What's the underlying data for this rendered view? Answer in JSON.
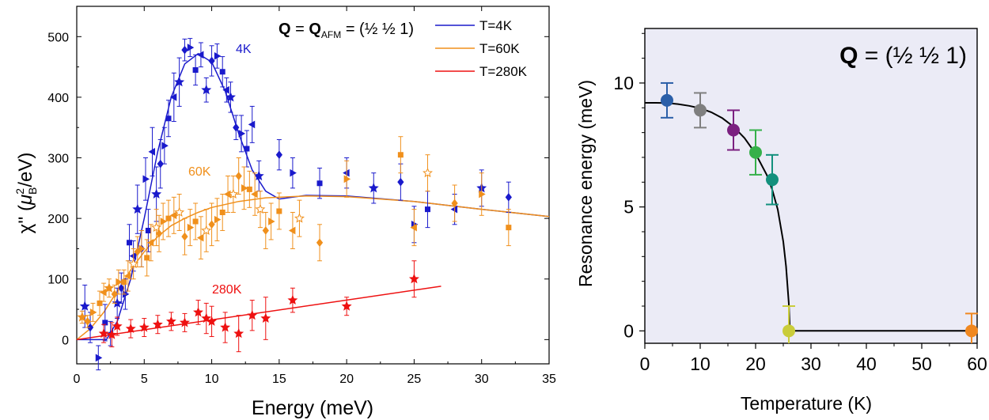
{
  "chart_data": [
    {
      "type": "scatter",
      "annotation": {
        "bold_q": "Q",
        "eq": " = ",
        "bold_q2": "Q",
        "sub": "AFM",
        "rest": " = (½ ½ 1)"
      },
      "xlabel": "Energy (meV)",
      "ylabel": {
        "chi": "χ''",
        "paren_open": " (",
        "mu": "μ",
        "sup": "2",
        "sub": "B",
        "rest": "/eV)"
      },
      "xlim": [
        0,
        35
      ],
      "ylim": [
        -40,
        550
      ],
      "xticks": [
        0,
        5,
        10,
        15,
        20,
        25,
        30,
        35
      ],
      "yticks": [
        0,
        100,
        200,
        300,
        400,
        500
      ],
      "legend_position": "top-right",
      "labels": {
        "t4": "4K",
        "t60": "60K",
        "t280": "280K"
      },
      "series": [
        {
          "name": "T=4K",
          "label_key": "t4",
          "color": "#1a1acc",
          "fit": [
            [
              0,
              0
            ],
            [
              2.2,
              0
            ],
            [
              3,
              30
            ],
            [
              4,
              100
            ],
            [
              5,
              200
            ],
            [
              6,
              310
            ],
            [
              7,
              400
            ],
            [
              8,
              455
            ],
            [
              9,
              472
            ],
            [
              10,
              458
            ],
            [
              11,
              410
            ],
            [
              12,
              340
            ],
            [
              13,
              280
            ],
            [
              14,
              245
            ],
            [
              15,
              232
            ],
            [
              17,
              238
            ],
            [
              20,
              237
            ],
            [
              25,
              228
            ],
            [
              30,
              215
            ],
            [
              35,
              203
            ]
          ],
          "points": [
            [
              0.6,
              55,
              35
            ],
            [
              1.0,
              20,
              25
            ],
            [
              1.6,
              -30,
              20
            ],
            [
              2.1,
              28,
              30
            ],
            [
              2.5,
              10,
              20
            ],
            [
              3.0,
              60,
              25
            ],
            [
              3.3,
              85,
              25
            ],
            [
              3.6,
              75,
              25
            ],
            [
              3.9,
              160,
              30
            ],
            [
              4.2,
              138,
              25
            ],
            [
              4.5,
              215,
              40
            ],
            [
              4.8,
              150,
              30
            ],
            [
              5.1,
              265,
              35
            ],
            [
              5.3,
              180,
              35
            ],
            [
              5.6,
              310,
              40
            ],
            [
              5.9,
              240,
              45
            ],
            [
              6.2,
              290,
              40
            ],
            [
              6.5,
              320,
              30
            ],
            [
              6.8,
              365,
              30
            ],
            [
              7.2,
              400,
              40
            ],
            [
              7.6,
              425,
              40
            ],
            [
              8.0,
              478,
              18
            ],
            [
              8.4,
              482,
              15
            ],
            [
              8.8,
              445,
              25
            ],
            [
              9.2,
              470,
              20
            ],
            [
              9.6,
              412,
              20
            ],
            [
              10.0,
              460,
              25
            ],
            [
              10.4,
              468,
              20
            ],
            [
              10.8,
              442,
              25
            ],
            [
              11.1,
              412,
              20
            ],
            [
              11.4,
              400,
              25
            ],
            [
              11.8,
              350,
              20
            ],
            [
              12.2,
              340,
              30
            ],
            [
              12.6,
              315,
              30
            ],
            [
              13.0,
              355,
              30
            ],
            [
              13.5,
              270,
              25
            ],
            [
              15.0,
              305,
              25
            ],
            [
              16.0,
              275,
              25
            ],
            [
              18.0,
              258,
              25
            ],
            [
              20.0,
              275,
              25
            ],
            [
              22.0,
              250,
              25
            ],
            [
              24.0,
              260,
              30
            ],
            [
              25.0,
              190,
              30
            ],
            [
              26.0,
              215,
              30
            ],
            [
              28.0,
              215,
              25
            ],
            [
              30.0,
              250,
              30
            ],
            [
              32.0,
              235,
              25
            ]
          ]
        },
        {
          "name": "T=60K",
          "label_key": "t60",
          "color": "#f0901c",
          "fit": [
            [
              0,
              0
            ],
            [
              1,
              18
            ],
            [
              2,
              45
            ],
            [
              3,
              80
            ],
            [
              4,
              115
            ],
            [
              5,
              145
            ],
            [
              6,
              170
            ],
            [
              7,
              188
            ],
            [
              8,
              200
            ],
            [
              9,
              210
            ],
            [
              10,
              218
            ],
            [
              12,
              228
            ],
            [
              14,
              234
            ],
            [
              17,
              237
            ],
            [
              20,
              236
            ],
            [
              25,
              228
            ],
            [
              30,
              215
            ],
            [
              35,
              203
            ]
          ],
          "points": [
            [
              0.4,
              37,
              10
            ],
            [
              0.8,
              30,
              10
            ],
            [
              1.2,
              45,
              15
            ],
            [
              1.7,
              60,
              20
            ],
            [
              2.0,
              78,
              15
            ],
            [
              2.4,
              85,
              15
            ],
            [
              2.8,
              75,
              15
            ],
            [
              3.1,
              95,
              20
            ],
            [
              3.5,
              95,
              20
            ],
            [
              3.8,
              105,
              25
            ],
            [
              4.2,
              125,
              25
            ],
            [
              4.5,
              145,
              25
            ],
            [
              4.8,
              150,
              30
            ],
            [
              5.2,
              135,
              30
            ],
            [
              5.5,
              160,
              30
            ],
            [
              5.9,
              185,
              30
            ],
            [
              6.1,
              175,
              30
            ],
            [
              6.4,
              195,
              30
            ],
            [
              6.8,
              200,
              30
            ],
            [
              7.2,
              205,
              30
            ],
            [
              7.6,
              210,
              30
            ],
            [
              8.0,
              170,
              30
            ],
            [
              8.4,
              185,
              30
            ],
            [
              8.8,
              195,
              30
            ],
            [
              9.2,
              168,
              35
            ],
            [
              9.6,
              180,
              35
            ],
            [
              10.0,
              190,
              35
            ],
            [
              10.4,
              198,
              35
            ],
            [
              10.8,
              210,
              30
            ],
            [
              11.2,
              240,
              30
            ],
            [
              11.6,
              240,
              30
            ],
            [
              12.0,
              270,
              30
            ],
            [
              12.4,
              250,
              35
            ],
            [
              12.8,
              248,
              30
            ],
            [
              13.2,
              240,
              35
            ],
            [
              13.6,
              215,
              30
            ],
            [
              14.0,
              180,
              30
            ],
            [
              14.4,
              195,
              30
            ],
            [
              15.0,
              212,
              30
            ],
            [
              16.0,
              180,
              30
            ],
            [
              16.5,
              200,
              30
            ],
            [
              18.0,
              160,
              30
            ],
            [
              20.0,
              265,
              30
            ],
            [
              24.0,
              305,
              30
            ],
            [
              25.0,
              185,
              30
            ],
            [
              26.0,
              275,
              30
            ],
            [
              28.0,
              225,
              30
            ],
            [
              30.0,
              240,
              35
            ],
            [
              32.0,
              185,
              30
            ]
          ]
        },
        {
          "name": "T=280K",
          "label_key": "t280",
          "color": "#ee1111",
          "fit": [
            [
              0,
              0
            ],
            [
              27,
              88
            ]
          ],
          "points": [
            [
              2,
              10,
              15
            ],
            [
              2.6,
              8,
              20
            ],
            [
              3,
              22,
              15
            ],
            [
              4,
              18,
              15
            ],
            [
              5,
              20,
              15
            ],
            [
              6,
              25,
              15
            ],
            [
              7,
              30,
              15
            ],
            [
              8,
              28,
              15
            ],
            [
              9,
              45,
              20
            ],
            [
              9.6,
              35,
              25
            ],
            [
              10,
              30,
              25
            ],
            [
              11,
              20,
              25
            ],
            [
              12,
              10,
              30
            ],
            [
              13,
              40,
              25
            ],
            [
              14,
              35,
              35
            ],
            [
              16,
              65,
              20
            ],
            [
              20,
              55,
              15
            ],
            [
              25,
              100,
              30
            ]
          ]
        }
      ]
    },
    {
      "type": "scatter",
      "annotation": {
        "bold_q": "Q",
        "rest": " = (½ ½ 1)"
      },
      "xlabel": "Temperature (K)",
      "ylabel": "Resonance energy (meV)",
      "xlim": [
        0,
        60
      ],
      "ylim": [
        -0.5,
        12.2
      ],
      "xticks": [
        0,
        10,
        20,
        30,
        40,
        50,
        60
      ],
      "yticks": [
        0,
        5,
        10
      ],
      "background": "#ebebf6",
      "fit": [
        [
          0,
          9.2
        ],
        [
          2,
          9.2
        ],
        [
          4,
          9.19
        ],
        [
          6,
          9.15
        ],
        [
          8,
          9.08
        ],
        [
          10,
          8.98
        ],
        [
          12,
          8.82
        ],
        [
          14,
          8.58
        ],
        [
          16,
          8.24
        ],
        [
          18,
          7.78
        ],
        [
          20,
          7.15
        ],
        [
          22,
          6.3
        ],
        [
          23,
          5.7
        ],
        [
          24,
          4.9
        ],
        [
          25,
          3.6
        ],
        [
          25.5,
          2.6
        ],
        [
          26,
          1.1
        ],
        [
          26.2,
          0
        ],
        [
          60,
          0
        ]
      ],
      "points": [
        {
          "x": 4,
          "y": 9.3,
          "err": 0.7,
          "color": "#2b5fa8"
        },
        {
          "x": 10,
          "y": 8.9,
          "err": 0.7,
          "color": "#7f7f7f"
        },
        {
          "x": 16,
          "y": 8.1,
          "err": 0.8,
          "color": "#7b2080"
        },
        {
          "x": 20,
          "y": 7.2,
          "err": 0.9,
          "color": "#36b04a"
        },
        {
          "x": 23,
          "y": 6.1,
          "err": 1.0,
          "color": "#13907d"
        },
        {
          "x": 26,
          "y": 0,
          "err": 1.0,
          "color": "#c9cc3a"
        },
        {
          "x": 59,
          "y": 0,
          "err": 0.7,
          "color": "#f08820"
        }
      ]
    }
  ]
}
